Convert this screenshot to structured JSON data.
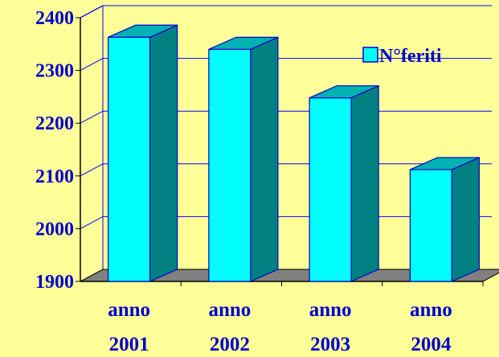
{
  "chart_data": {
    "type": "bar",
    "style": "3d-column",
    "categories": [
      [
        "anno",
        "2001"
      ],
      [
        "anno",
        "2002"
      ],
      [
        "anno",
        "2003"
      ],
      [
        "anno",
        "2004"
      ]
    ],
    "series": [
      {
        "name": "N°feriti",
        "values": [
          2363,
          2340,
          2248,
          2112
        ]
      }
    ],
    "ylim": [
      1900,
      2400
    ],
    "yticks": [
      1900,
      2000,
      2100,
      2200,
      2300,
      2400
    ],
    "title": "",
    "xlabel": "",
    "ylabel": "",
    "grid": true,
    "legend_position": "top-right",
    "colors": {
      "background": "#ffff99",
      "axis_text": "#0000cc",
      "axes_lines": "#0000ff",
      "bar_front": "#00ffff",
      "bar_side": "#008080",
      "bar_top": "#00b2b2",
      "bar_outline": "#0000cc",
      "floor": "#808080"
    }
  }
}
